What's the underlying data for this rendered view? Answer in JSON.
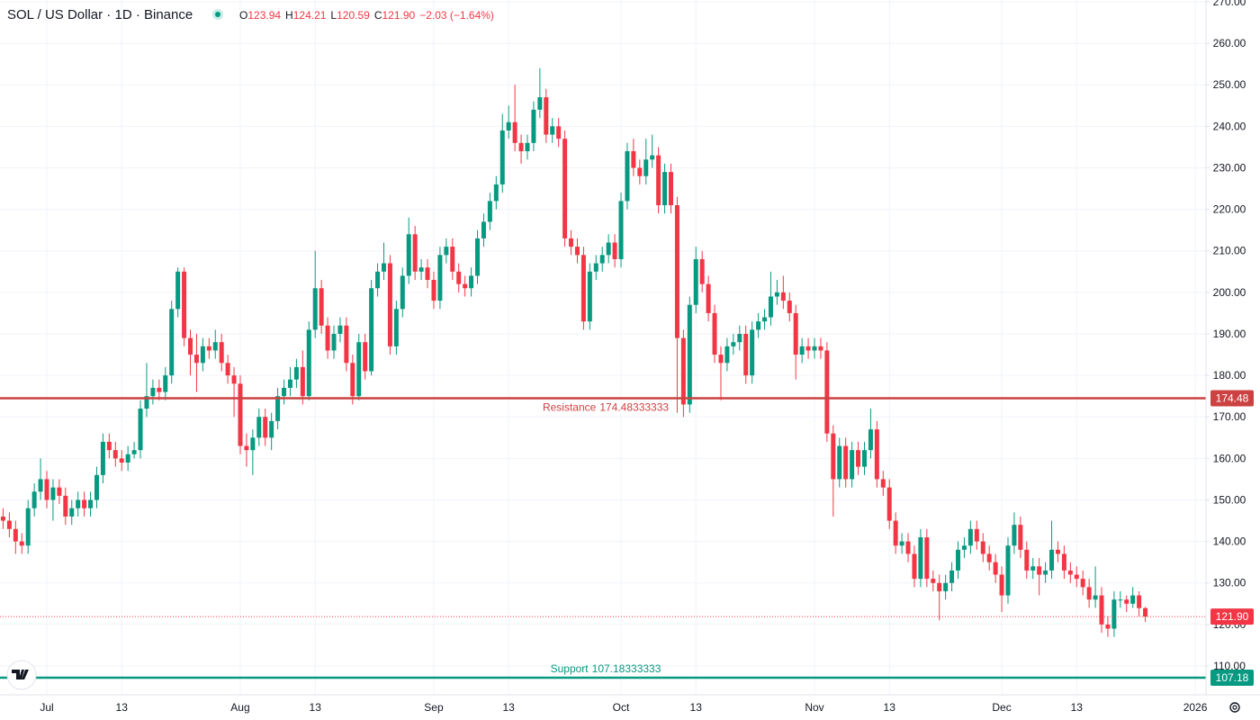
{
  "chart_data": {
    "type": "candlestick",
    "title": "SOL / US Dollar · 1D · Binance",
    "ohlc_keys": [
      "O",
      "H",
      "L",
      "C"
    ],
    "ohlc_labels": [
      "123.94",
      "124.21",
      "120.59",
      "121.90"
    ],
    "change_label": "−2.03 (−1.64%)",
    "categories": [
      null,
      null,
      null,
      null,
      null,
      null,
      null,
      "Jul",
      null,
      null,
      null,
      null,
      null,
      null,
      null,
      null,
      null,
      null,
      null,
      "13",
      null,
      null,
      null,
      null,
      null,
      null,
      null,
      null,
      null,
      null,
      null,
      null,
      null,
      null,
      null,
      null,
      null,
      null,
      "Aug",
      null,
      null,
      null,
      null,
      null,
      null,
      null,
      null,
      null,
      null,
      null,
      "13",
      null,
      null,
      null,
      null,
      null,
      null,
      null,
      null,
      null,
      null,
      null,
      null,
      null,
      null,
      null,
      null,
      null,
      null,
      "Sep",
      null,
      null,
      null,
      null,
      null,
      null,
      null,
      null,
      null,
      null,
      null,
      "13",
      null,
      null,
      null,
      null,
      null,
      null,
      null,
      null,
      null,
      null,
      null,
      null,
      null,
      null,
      null,
      null,
      null,
      "Oct",
      null,
      null,
      null,
      null,
      null,
      null,
      null,
      null,
      null,
      null,
      null,
      "13",
      null,
      null,
      null,
      null,
      null,
      null,
      null,
      null,
      null,
      null,
      null,
      null,
      null,
      null,
      null,
      null,
      null,
      null,
      "Nov",
      null,
      null,
      null,
      null,
      null,
      null,
      null,
      null,
      null,
      null,
      null,
      "13",
      null,
      null,
      null,
      null,
      null,
      null,
      null,
      null,
      null,
      null,
      null,
      null,
      null,
      null,
      null,
      null,
      null,
      "Dec",
      null,
      null,
      null,
      null,
      null,
      null,
      null,
      null,
      null,
      null,
      null,
      "13",
      null,
      null,
      null,
      null,
      null,
      null,
      null,
      null,
      null,
      null,
      null,
      null,
      null,
      null,
      null,
      null,
      null,
      null,
      "2026",
      null
    ],
    "open": [
      146,
      145,
      143,
      140,
      139,
      148,
      152,
      155,
      150,
      153,
      151,
      146,
      148,
      150,
      148,
      150,
      156,
      164,
      162,
      160,
      159,
      161,
      162,
      172,
      175,
      177,
      176,
      180,
      196,
      205,
      189,
      185,
      183,
      187,
      186,
      188,
      183,
      180,
      178,
      163,
      162,
      165,
      170,
      165,
      169,
      175,
      177,
      179,
      182,
      175,
      191,
      201,
      192,
      186,
      190,
      192,
      183,
      175,
      188,
      181,
      201,
      205,
      207,
      187,
      196,
      204,
      214,
      205,
      206,
      203,
      198,
      209,
      211,
      205,
      202,
      201,
      204,
      213,
      217,
      222,
      226,
      239,
      241,
      236,
      234,
      236,
      244,
      247,
      238,
      240,
      237,
      213,
      211,
      209,
      193,
      205,
      207,
      209,
      212,
      208,
      222,
      234,
      230,
      228,
      232,
      233,
      221,
      229,
      221,
      189,
      173,
      197,
      208,
      202,
      195,
      185,
      183,
      187,
      188,
      190,
      180,
      191,
      193,
      194,
      199,
      200,
      198,
      195,
      185,
      187,
      186,
      187,
      186,
      166,
      155,
      163,
      155,
      162,
      158,
      162,
      167,
      155,
      153,
      145,
      139,
      140,
      137,
      131,
      141,
      131,
      130,
      128,
      130,
      133,
      138,
      139,
      143,
      140,
      137,
      135,
      132,
      127,
      139,
      144,
      138,
      133,
      134,
      132,
      133,
      138,
      137,
      133,
      132,
      131,
      129,
      126,
      127,
      120,
      119,
      126,
      126,
      125,
      127,
      123.94,
      null,
      null,
      null,
      null,
      null,
      null,
      null,
      null,
      null
    ],
    "high": [
      148,
      147,
      145,
      142,
      150,
      154,
      160,
      157,
      155,
      155,
      153,
      150,
      152,
      152,
      152,
      158,
      166,
      166,
      164,
      162,
      163,
      164,
      174,
      183,
      179,
      179,
      182,
      198,
      206,
      206,
      191,
      190,
      189,
      189,
      191,
      190,
      185,
      182,
      180,
      166,
      167,
      172,
      172,
      171,
      177,
      179,
      182,
      184,
      186,
      193,
      210,
      203,
      194,
      192,
      194,
      194,
      185,
      190,
      190,
      203,
      207,
      212,
      209,
      198,
      206,
      218,
      216,
      208,
      208,
      205,
      211,
      213,
      213,
      207,
      204,
      206,
      215,
      219,
      224,
      228,
      243,
      245,
      250,
      238,
      238,
      246,
      254,
      249,
      242,
      242,
      239,
      215,
      213,
      211,
      207,
      209,
      211,
      214,
      214,
      224,
      236,
      237,
      232,
      237,
      238,
      235,
      231,
      231,
      223,
      191,
      199,
      211,
      210,
      204,
      197,
      187,
      189,
      190,
      192,
      192,
      193,
      195,
      196,
      205,
      203,
      204,
      200,
      197,
      189,
      189,
      189,
      189,
      188,
      168,
      165,
      165,
      164,
      164,
      164,
      172,
      169,
      157,
      155,
      147,
      142,
      142,
      139,
      143,
      143,
      133,
      132,
      132,
      135,
      140,
      141,
      145,
      145,
      142,
      139,
      137,
      134,
      141,
      147,
      146,
      140,
      136,
      136,
      135,
      145,
      140,
      139,
      135,
      134,
      133,
      131,
      134,
      129,
      122,
      128,
      128,
      127,
      129,
      128,
      124.21,
      null,
      null,
      null,
      null,
      null,
      null,
      null,
      null,
      null
    ],
    "low": [
      143,
      141,
      137,
      137,
      137,
      146,
      150,
      148,
      145,
      149,
      144,
      144,
      146,
      146,
      146,
      148,
      154,
      160,
      158,
      157,
      157,
      160,
      160,
      170,
      173,
      174,
      174,
      178,
      194,
      187,
      180,
      176,
      181,
      184,
      184,
      181,
      178,
      170,
      161,
      158,
      156,
      163,
      163,
      162,
      167,
      173,
      175,
      177,
      173,
      174,
      189,
      190,
      184,
      184,
      188,
      181,
      173,
      174,
      179,
      180,
      199,
      203,
      185,
      185,
      194,
      202,
      203,
      203,
      201,
      196,
      196,
      207,
      203,
      200,
      199,
      199,
      202,
      211,
      215,
      220,
      224,
      237,
      234,
      231,
      232,
      234,
      242,
      236,
      236,
      235,
      211,
      209,
      207,
      191,
      191,
      203,
      205,
      207,
      206,
      206,
      220,
      228,
      226,
      226,
      230,
      219,
      219,
      219,
      171,
      170,
      171,
      195,
      200,
      193,
      183,
      174,
      181,
      185,
      186,
      178,
      178,
      189,
      191,
      192,
      197,
      196,
      193,
      179,
      183,
      184,
      184,
      184,
      164,
      146,
      153,
      153,
      153,
      156,
      156,
      160,
      153,
      151,
      143,
      137,
      137,
      135,
      129,
      129,
      129,
      128,
      121,
      126,
      128,
      131,
      136,
      137,
      138,
      135,
      133,
      130,
      123,
      125,
      137,
      136,
      131,
      131,
      127,
      130,
      131,
      135,
      131,
      130,
      129,
      127,
      124,
      124,
      118,
      117,
      117,
      124,
      123,
      124,
      122,
      120.59,
      null,
      null,
      null,
      null,
      null,
      null,
      null,
      null,
      null
    ],
    "close": [
      145,
      143,
      140,
      139,
      148,
      152,
      155,
      150,
      153,
      151,
      146,
      148,
      150,
      148,
      150,
      156,
      164,
      162,
      160,
      159,
      161,
      162,
      172,
      175,
      177,
      176,
      180,
      196,
      205,
      189,
      185,
      183,
      187,
      186,
      188,
      183,
      180,
      178,
      163,
      162,
      165,
      170,
      165,
      169,
      175,
      177,
      179,
      182,
      175,
      191,
      201,
      192,
      186,
      190,
      192,
      183,
      175,
      188,
      181,
      201,
      205,
      207,
      187,
      196,
      204,
      214,
      205,
      206,
      203,
      198,
      209,
      211,
      205,
      202,
      201,
      204,
      213,
      217,
      222,
      226,
      239,
      241,
      236,
      234,
      236,
      244,
      247,
      238,
      240,
      237,
      213,
      211,
      209,
      193,
      205,
      207,
      209,
      212,
      208,
      222,
      234,
      230,
      228,
      232,
      233,
      221,
      229,
      221,
      189,
      173,
      197,
      208,
      202,
      195,
      185,
      183,
      187,
      188,
      190,
      180,
      191,
      193,
      194,
      199,
      200,
      198,
      195,
      185,
      187,
      186,
      187,
      186,
      166,
      155,
      163,
      155,
      162,
      158,
      162,
      167,
      155,
      153,
      145,
      139,
      140,
      137,
      131,
      141,
      131,
      130,
      128,
      130,
      133,
      138,
      139,
      143,
      140,
      137,
      135,
      132,
      127,
      139,
      144,
      138,
      133,
      134,
      132,
      133,
      138,
      137,
      133,
      132,
      131,
      129,
      126,
      127,
      120,
      119,
      126,
      126,
      125,
      127,
      123.94,
      121.9,
      null,
      null,
      null,
      null,
      null,
      null,
      null,
      null,
      null
    ],
    "up_color": "#089981",
    "down_color": "#f23645",
    "ylim": [
      103.06,
      270.43
    ],
    "yticks": [
      {
        "value": 110,
        "label": "110.00"
      },
      {
        "value": 120,
        "label": "120.00"
      },
      {
        "value": 130,
        "label": "130.00"
      },
      {
        "value": 140,
        "label": "140.00"
      },
      {
        "value": 150,
        "label": "150.00"
      },
      {
        "value": 160,
        "label": "160.00"
      },
      {
        "value": 170,
        "label": "170.00"
      },
      {
        "value": 180,
        "label": "180.00"
      },
      {
        "value": 190,
        "label": "190.00"
      },
      {
        "value": 200,
        "label": "200.00"
      },
      {
        "value": 210,
        "label": "210.00"
      },
      {
        "value": 220,
        "label": "220.00"
      },
      {
        "value": 230,
        "label": "230.00"
      },
      {
        "value": 240,
        "label": "240.00"
      },
      {
        "value": 250,
        "label": "250.00"
      },
      {
        "value": 260,
        "label": "260.00"
      },
      {
        "value": 270,
        "label": "270.00"
      }
    ],
    "grid": true,
    "levels": [
      {
        "name": "Resistance",
        "value": 174.48333333,
        "value_label": "174.48",
        "color": "#cc4242"
      },
      {
        "name": "Support",
        "value": 107.18333333,
        "value_label": "107.18",
        "color": "#089981"
      }
    ]
  }
}
